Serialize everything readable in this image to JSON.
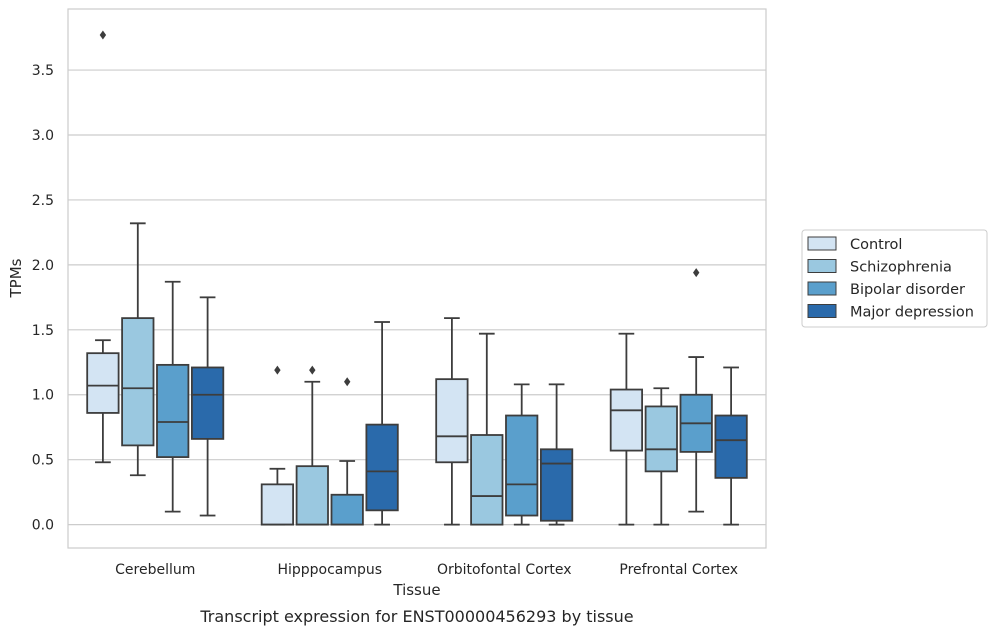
{
  "caption": "Transcript expression for ENST00000456293 by tissue",
  "chart_data": {
    "type": "box",
    "xlabel": "Tissue",
    "ylabel": "TPMs",
    "ylim": [
      -0.18,
      3.97
    ],
    "yticks": [
      0.0,
      0.5,
      1.0,
      1.5,
      2.0,
      2.5,
      3.0,
      3.5
    ],
    "ytick_labels": [
      "0.0",
      "0.5",
      "1.0",
      "1.5",
      "2.0",
      "2.5",
      "3.0",
      "3.5"
    ],
    "grid": true,
    "legend_position": "right",
    "categories": [
      "Cerebellum",
      "Hipppocampus",
      "Orbitofontal Cortex",
      "Prefrontal Cortex"
    ],
    "series": [
      {
        "name": "Control",
        "color": "#d3e4f3",
        "boxes": [
          {
            "whislo": 0.48,
            "q1": 0.86,
            "med": 1.07,
            "q3": 1.32,
            "whishi": 1.42,
            "fliers": [
              3.77
            ]
          },
          {
            "whislo": 0.0,
            "q1": 0.0,
            "med": 0.0,
            "q3": 0.31,
            "whishi": 0.43,
            "fliers": [
              1.19
            ]
          },
          {
            "whislo": 0.0,
            "q1": 0.48,
            "med": 0.68,
            "q3": 1.12,
            "whishi": 1.59,
            "fliers": []
          },
          {
            "whislo": 0.0,
            "q1": 0.57,
            "med": 0.88,
            "q3": 1.04,
            "whishi": 1.47,
            "fliers": []
          }
        ]
      },
      {
        "name": "Schizophrenia",
        "color": "#9ac8e0",
        "boxes": [
          {
            "whislo": 0.38,
            "q1": 0.61,
            "med": 1.05,
            "q3": 1.59,
            "whishi": 2.32,
            "fliers": []
          },
          {
            "whislo": 0.0,
            "q1": 0.0,
            "med": 0.0,
            "q3": 0.45,
            "whishi": 1.1,
            "fliers": [
              1.19
            ]
          },
          {
            "whislo": 0.0,
            "q1": 0.0,
            "med": 0.22,
            "q3": 0.69,
            "whishi": 1.47,
            "fliers": []
          },
          {
            "whislo": 0.0,
            "q1": 0.41,
            "med": 0.58,
            "q3": 0.91,
            "whishi": 1.05,
            "fliers": []
          }
        ]
      },
      {
        "name": "Bipolar disorder",
        "color": "#5a9fcc",
        "boxes": [
          {
            "whislo": 0.1,
            "q1": 0.52,
            "med": 0.79,
            "q3": 1.23,
            "whishi": 1.87,
            "fliers": []
          },
          {
            "whislo": 0.0,
            "q1": 0.0,
            "med": 0.0,
            "q3": 0.23,
            "whishi": 0.49,
            "fliers": [
              1.1
            ]
          },
          {
            "whislo": 0.0,
            "q1": 0.07,
            "med": 0.31,
            "q3": 0.84,
            "whishi": 1.08,
            "fliers": []
          },
          {
            "whislo": 0.1,
            "q1": 0.56,
            "med": 0.78,
            "q3": 1.0,
            "whishi": 1.29,
            "fliers": [
              1.94
            ]
          }
        ]
      },
      {
        "name": "Major depression",
        "color": "#2a6aab",
        "boxes": [
          {
            "whislo": 0.07,
            "q1": 0.66,
            "med": 1.0,
            "q3": 1.21,
            "whishi": 1.75,
            "fliers": []
          },
          {
            "whislo": 0.0,
            "q1": 0.11,
            "med": 0.41,
            "q3": 0.77,
            "whishi": 1.56,
            "fliers": []
          },
          {
            "whislo": 0.0,
            "q1": 0.03,
            "med": 0.47,
            "q3": 0.58,
            "whishi": 1.08,
            "fliers": []
          },
          {
            "whislo": 0.0,
            "q1": 0.36,
            "med": 0.65,
            "q3": 0.84,
            "whishi": 1.21,
            "fliers": []
          }
        ]
      }
    ]
  }
}
